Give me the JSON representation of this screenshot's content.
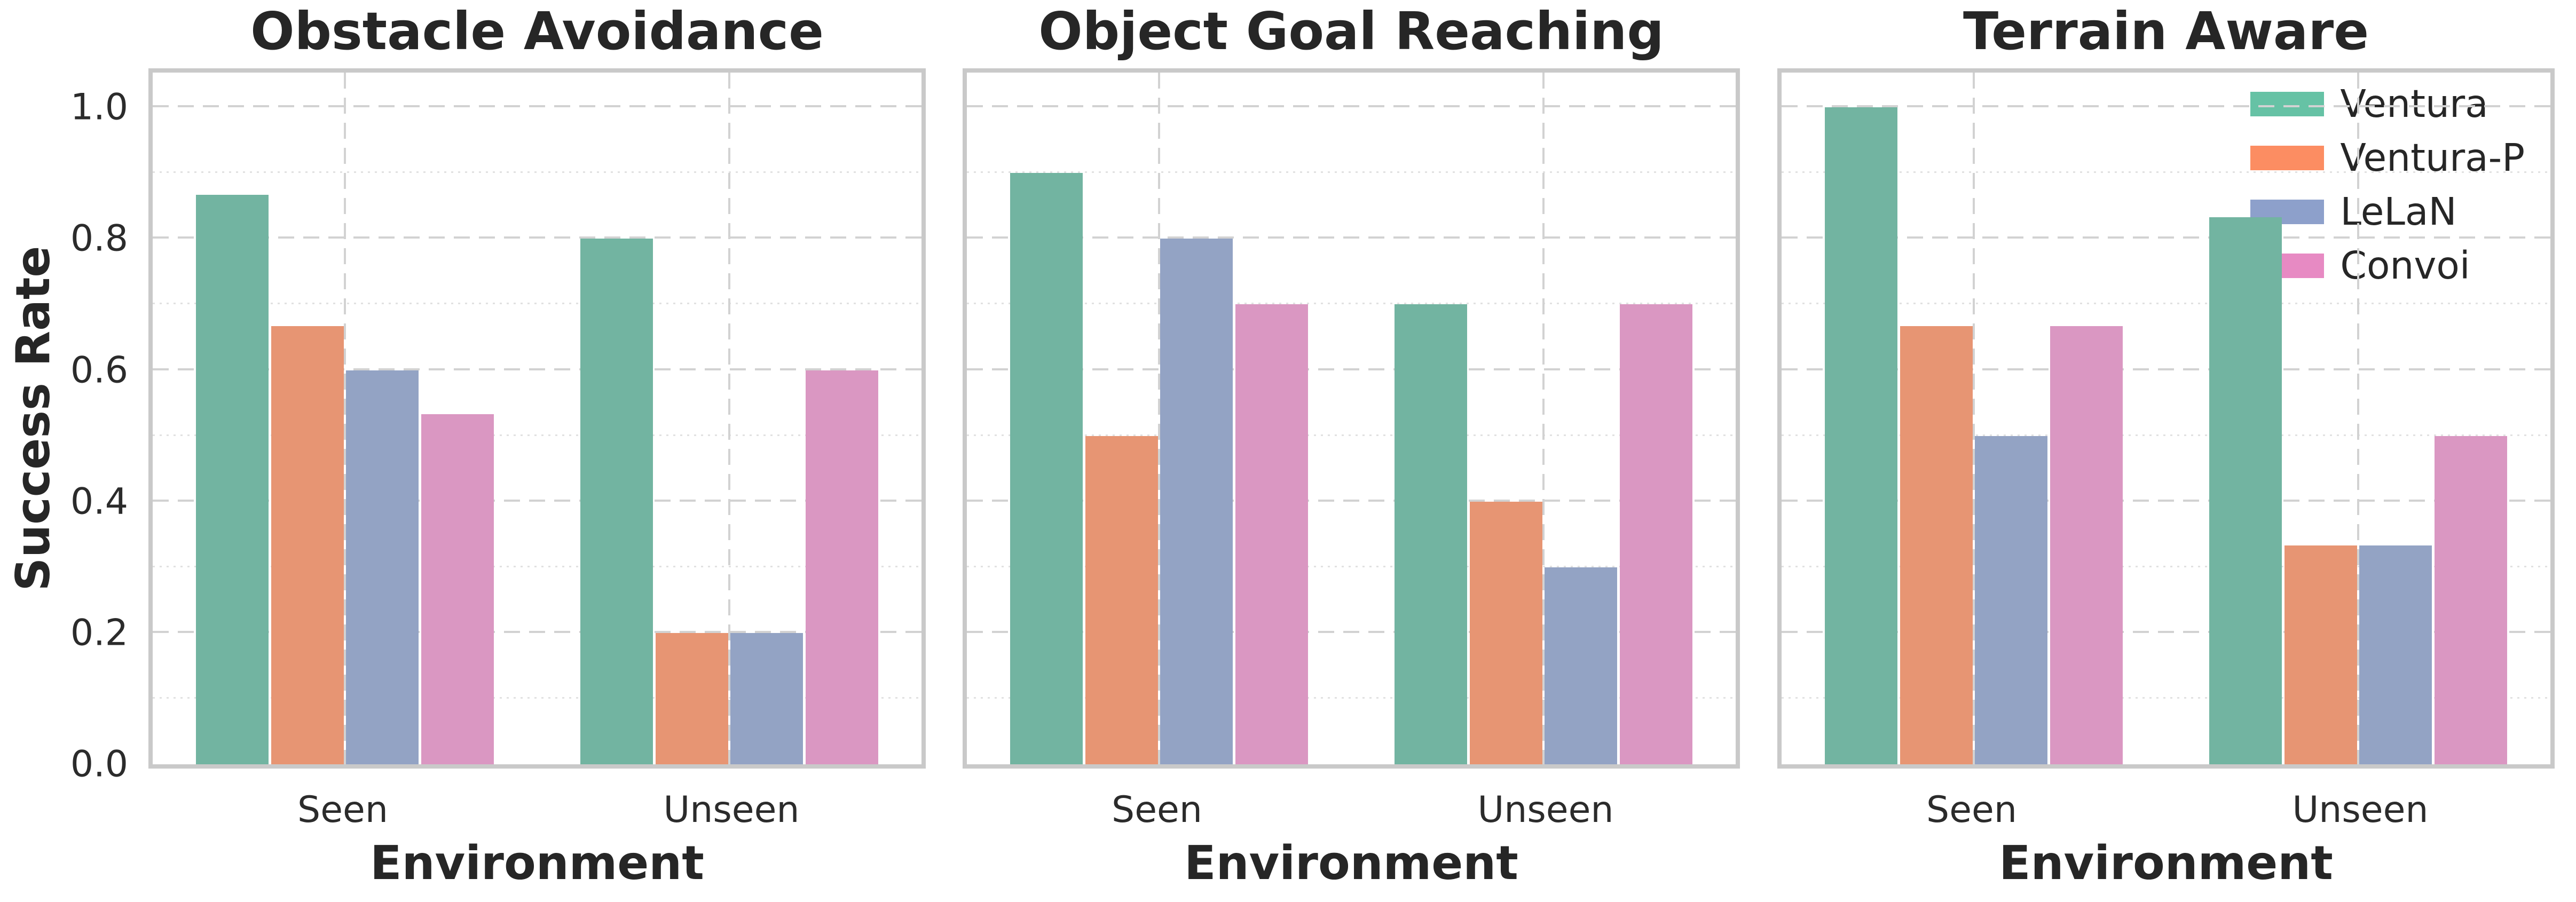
{
  "figure": {
    "ylabel": "Success Rate",
    "xlabel": "Environment",
    "yticks": [
      "0.0",
      "0.2",
      "0.4",
      "0.6",
      "0.8",
      "1.0"
    ],
    "background_color": "#ffffff",
    "spine_color": "#c9c9c9",
    "grid_major_color": "#d2d2d2",
    "grid_minor_color": "#e1e1e1",
    "text_color": "#262626"
  },
  "legend": {
    "location": "upper right of third panel",
    "entries": [
      {
        "label": "Ventura",
        "color": "#66c2a5"
      },
      {
        "label": "Ventura-P",
        "color": "#fc8d62"
      },
      {
        "label": "LeLaN",
        "color": "#8da0cb"
      },
      {
        "label": "Convoi",
        "color": "#e78ac3"
      }
    ]
  },
  "chart_data": [
    {
      "type": "bar",
      "title": "Obstacle Avoidance",
      "xlabel": "Environment",
      "ylabel": "Success Rate",
      "categories": [
        "Seen",
        "Unseen"
      ],
      "series": [
        {
          "name": "Ventura",
          "color": "#72b4a1",
          "values": [
            0.867,
            0.8
          ]
        },
        {
          "name": "Ventura-P",
          "color": "#e79573",
          "values": [
            0.667,
            0.2
          ]
        },
        {
          "name": "LeLaN",
          "color": "#93a3c4",
          "values": [
            0.6,
            0.2
          ]
        },
        {
          "name": "Convoi",
          "color": "#da97c2",
          "values": [
            0.533,
            0.6
          ]
        }
      ],
      "ylim": [
        0,
        1.053
      ],
      "grid": "major dashed at 0.2 steps, minor dotted at 0.1 steps, vertical dashed at category centers",
      "legend_position": "none"
    },
    {
      "type": "bar",
      "title": "Object Goal Reaching",
      "xlabel": "Environment",
      "ylabel": "Success Rate",
      "categories": [
        "Seen",
        "Unseen"
      ],
      "series": [
        {
          "name": "Ventura",
          "color": "#72b4a1",
          "values": [
            0.9,
            0.7
          ]
        },
        {
          "name": "Ventura-P",
          "color": "#e79573",
          "values": [
            0.5,
            0.4
          ]
        },
        {
          "name": "LeLaN",
          "color": "#93a3c4",
          "values": [
            0.8,
            0.3
          ]
        },
        {
          "name": "Convoi",
          "color": "#da97c2",
          "values": [
            0.7,
            0.7
          ]
        }
      ],
      "ylim": [
        0,
        1.053
      ],
      "grid": "major dashed at 0.2 steps, minor dotted at 0.1 steps, vertical dashed at category centers",
      "legend_position": "none"
    },
    {
      "type": "bar",
      "title": "Terrain Aware",
      "xlabel": "Environment",
      "ylabel": "Success Rate",
      "categories": [
        "Seen",
        "Unseen"
      ],
      "series": [
        {
          "name": "Ventura",
          "color": "#72b4a1",
          "values": [
            1.0,
            0.833
          ]
        },
        {
          "name": "Ventura-P",
          "color": "#e79573",
          "values": [
            0.667,
            0.333
          ]
        },
        {
          "name": "LeLaN",
          "color": "#93a3c4",
          "values": [
            0.5,
            0.333
          ]
        },
        {
          "name": "Convoi",
          "color": "#da97c2",
          "values": [
            0.667,
            0.5
          ]
        }
      ],
      "ylim": [
        0,
        1.053
      ],
      "grid": "major dashed at 0.2 steps, minor dotted at 0.1 steps, vertical dashed at category centers",
      "legend_position": "upper right"
    }
  ]
}
